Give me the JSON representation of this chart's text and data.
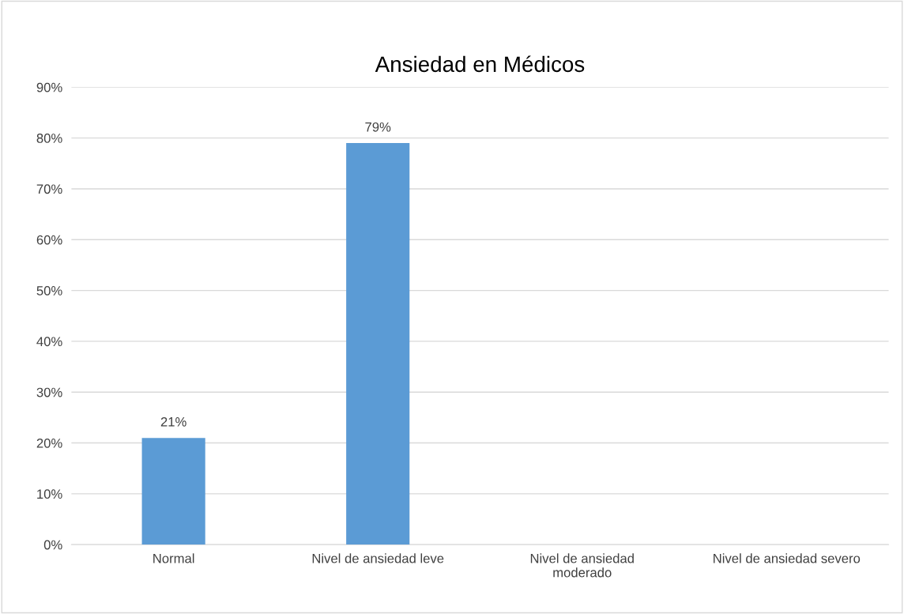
{
  "chart_data": {
    "type": "bar",
    "title": "Ansiedad en Médicos",
    "categories": [
      "Normal",
      "Nivel de ansiedad leve",
      "Nivel de ansiedad\nmoderado",
      "Nivel de ansiedad severo"
    ],
    "values": [
      21,
      79,
      0,
      0
    ],
    "value_labels": [
      "21%",
      "79%",
      null,
      null
    ],
    "color": "#5b9bd5",
    "ylim": [
      0,
      90
    ],
    "yticks": [
      {
        "value": 0,
        "label": "0%"
      },
      {
        "value": 10,
        "label": "10%"
      },
      {
        "value": 20,
        "label": "20%"
      },
      {
        "value": 30,
        "label": "30%"
      },
      {
        "value": 40,
        "label": "40%"
      },
      {
        "value": 50,
        "label": "50%"
      },
      {
        "value": 60,
        "label": "60%"
      },
      {
        "value": 70,
        "label": "70%"
      },
      {
        "value": 80,
        "label": "80%"
      },
      {
        "value": 90,
        "label": "90%"
      }
    ],
    "grid": "y"
  }
}
